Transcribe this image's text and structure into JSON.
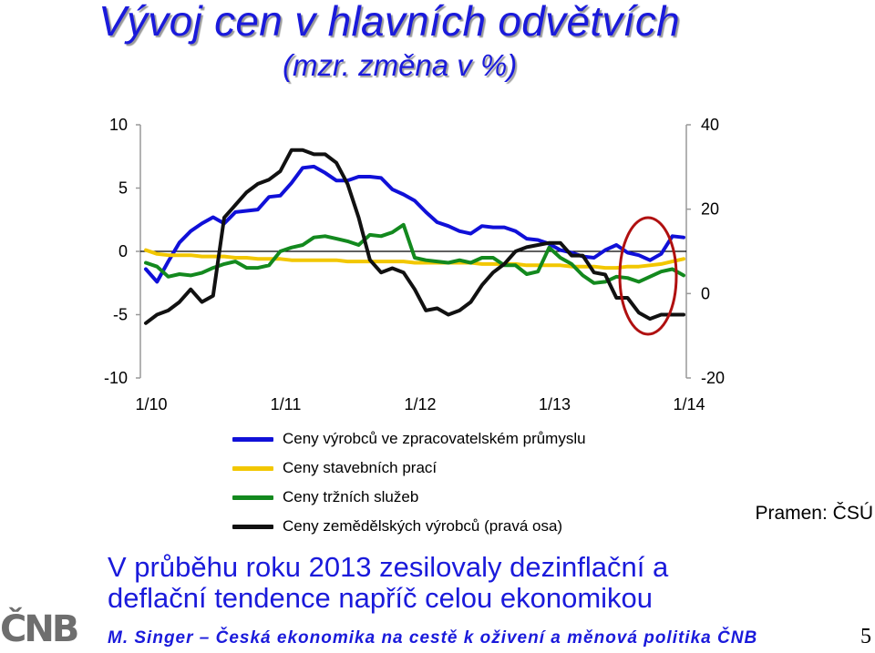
{
  "slide": {
    "title": "Vývoj cen v hlavních odvětvích",
    "subtitle": "(mzr. změna v %)",
    "source": "Pramen: ČSÚ",
    "message_line1": "V průběhu roku 2013 zesilovaly dezinflační a",
    "message_line2": "deflační tendence napříč celou ekonomikou",
    "logo_text": "ČNB",
    "footer": "M. Singer – Česká ekonomika na cestě k oživení a měnová politika ČNB",
    "page_number": "5"
  },
  "colors": {
    "title": "#1a1adb",
    "highlight_ellipse": "#b01010",
    "zero_line": "#000000"
  },
  "chart_data": {
    "type": "line",
    "title": "",
    "x_tick_labels": [
      "1/10",
      "1/11",
      "1/12",
      "1/13",
      "1/14"
    ],
    "x": [
      "1/10",
      "2/10",
      "3/10",
      "4/10",
      "5/10",
      "6/10",
      "7/10",
      "8/10",
      "9/10",
      "10/10",
      "11/10",
      "12/10",
      "1/11",
      "2/11",
      "3/11",
      "4/11",
      "5/11",
      "6/11",
      "7/11",
      "8/11",
      "9/11",
      "10/11",
      "11/11",
      "12/11",
      "1/12",
      "2/12",
      "3/12",
      "4/12",
      "5/12",
      "6/12",
      "7/12",
      "8/12",
      "9/12",
      "10/12",
      "11/12",
      "12/12",
      "1/13",
      "2/13",
      "3/13",
      "4/13",
      "5/13",
      "6/13",
      "7/13",
      "8/13",
      "9/13",
      "10/13",
      "11/13",
      "12/13",
      "1/14"
    ],
    "y_left": {
      "ticks": [
        10,
        5,
        0,
        -5,
        -10
      ],
      "ylim": [
        -10,
        10
      ]
    },
    "y_right": {
      "ticks": [
        40,
        20,
        0,
        -20
      ],
      "ylim": [
        -20,
        40
      ],
      "label": "pravá osa"
    },
    "grid": false,
    "legend_position": "bottom",
    "annotation": "red ellipse highlighting the end of 2013",
    "series": [
      {
        "name": "Ceny výrobců ve zpracovatelském průmyslu",
        "axis": "left",
        "color": "#1010d8",
        "values": [
          -1.4,
          -2.4,
          -0.8,
          0.7,
          1.6,
          2.2,
          2.7,
          2.2,
          3.1,
          3.2,
          3.3,
          4.3,
          4.4,
          5.4,
          6.6,
          6.7,
          6.2,
          5.6,
          5.6,
          5.9,
          5.9,
          5.8,
          4.9,
          4.5,
          4.0,
          3.1,
          2.3,
          2.0,
          1.6,
          1.4,
          2.0,
          1.9,
          1.9,
          1.6,
          1.0,
          0.9,
          0.6,
          0.1,
          -0.1,
          -0.4,
          -0.5,
          0.1,
          0.5,
          -0.1,
          -0.3,
          -0.7,
          -0.2,
          1.2,
          1.1
        ]
      },
      {
        "name": "Ceny stavebních prací",
        "axis": "left",
        "color": "#f2c700",
        "values": [
          0.1,
          -0.2,
          -0.3,
          -0.3,
          -0.3,
          -0.4,
          -0.4,
          -0.4,
          -0.5,
          -0.5,
          -0.6,
          -0.6,
          -0.6,
          -0.7,
          -0.7,
          -0.7,
          -0.7,
          -0.7,
          -0.8,
          -0.8,
          -0.8,
          -0.8,
          -0.8,
          -0.8,
          -0.9,
          -0.9,
          -0.9,
          -0.9,
          -0.9,
          -0.9,
          -1.0,
          -1.0,
          -1.0,
          -1.0,
          -1.1,
          -1.1,
          -1.1,
          -1.1,
          -1.2,
          -1.2,
          -1.2,
          -1.3,
          -1.3,
          -1.2,
          -1.2,
          -1.1,
          -1.0,
          -0.8,
          -0.6
        ]
      },
      {
        "name": "Ceny tržních služeb",
        "axis": "left",
        "color": "#13891e",
        "values": [
          -0.9,
          -1.2,
          -2.0,
          -1.8,
          -1.9,
          -1.7,
          -1.3,
          -1.0,
          -0.8,
          -1.3,
          -1.3,
          -1.1,
          0.0,
          0.3,
          0.5,
          1.1,
          1.2,
          1.0,
          0.8,
          0.5,
          1.3,
          1.2,
          1.5,
          2.1,
          -0.5,
          -0.7,
          -0.8,
          -0.9,
          -0.7,
          -0.9,
          -0.5,
          -0.5,
          -1.1,
          -1.1,
          -1.8,
          -1.6,
          0.3,
          -0.5,
          -1.0,
          -1.9,
          -2.5,
          -2.4,
          -2.0,
          -2.1,
          -2.4,
          -2.0,
          -1.6,
          -1.4,
          -1.9
        ]
      },
      {
        "name": "Ceny zemědělských výrobců (pravá osa)",
        "axis": "right",
        "color": "#111111",
        "values": [
          -7,
          -5,
          -4,
          -2,
          1,
          -2,
          -0.5,
          18,
          21,
          24,
          26,
          27,
          29,
          34,
          34,
          33,
          33,
          31,
          26,
          18,
          8,
          5,
          6,
          5,
          1,
          -4,
          -3.5,
          -5,
          -4,
          -2,
          2,
          5,
          7,
          10,
          11,
          11.5,
          12,
          12,
          9,
          9,
          5,
          4.5,
          -1,
          -1,
          -4.5,
          -6,
          -5,
          -5,
          -5
        ]
      }
    ]
  }
}
